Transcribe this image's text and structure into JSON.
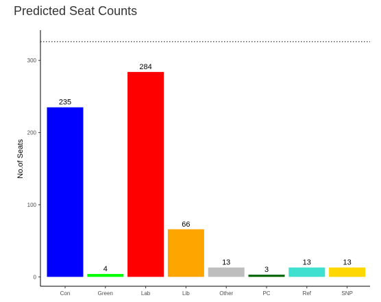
{
  "chart_data": {
    "type": "bar",
    "title": "Predicted Seat Counts",
    "xlabel": "",
    "ylabel": "No.of Seats",
    "categories": [
      "Con",
      "Green",
      "Lab",
      "Lib",
      "Other",
      "PC",
      "Ref",
      "SNP"
    ],
    "values": [
      235,
      4,
      284,
      66,
      13,
      3,
      13,
      13
    ],
    "data_labels": [
      "235",
      "4",
      "284",
      "66",
      "13",
      "3",
      "13",
      "13"
    ],
    "colors": [
      "#0000ff",
      "#00ff00",
      "#ff0000",
      "#ffa500",
      "#bebebe",
      "#006400",
      "#40e0d0",
      "#ffd700"
    ],
    "yticks": [
      0,
      100,
      200,
      300
    ],
    "ytick_labels": [
      "0",
      "100",
      "200",
      "300"
    ],
    "ylim": [
      -13,
      342
    ],
    "reference_line": {
      "value": 326,
      "style": "dotted",
      "color": "#000000"
    },
    "grid": false,
    "legend": "none"
  }
}
